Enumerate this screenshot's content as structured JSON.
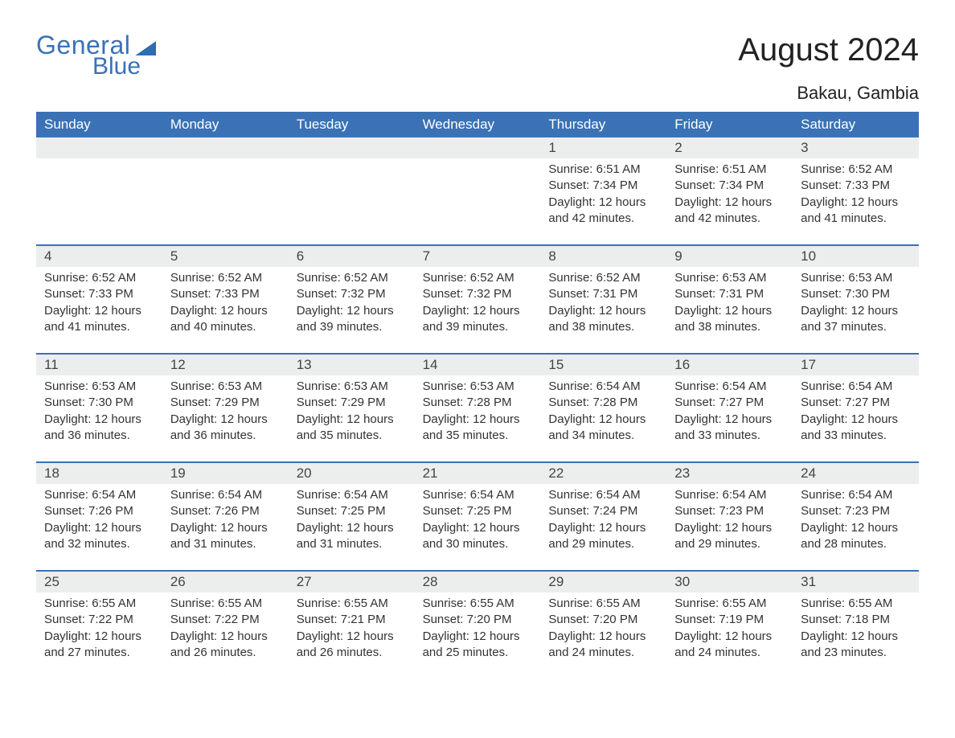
{
  "logo": {
    "word1": "General",
    "word2": "Blue",
    "brand_color": "#3a72b5"
  },
  "title": "August 2024",
  "subtitle": "Bakau, Gambia",
  "colors": {
    "header_bg": "#3a72b5",
    "header_text": "#ffffff",
    "daynum_bg": "#eceded",
    "week_divider": "#3a72b5",
    "body_text": "#333333",
    "page_bg": "#ffffff"
  },
  "typography": {
    "title_fontsize": 40,
    "subtitle_fontsize": 22,
    "weekday_fontsize": 17,
    "daynum_fontsize": 17,
    "body_fontsize": 15
  },
  "calendar": {
    "type": "table",
    "columns": [
      "Sunday",
      "Monday",
      "Tuesday",
      "Wednesday",
      "Thursday",
      "Friday",
      "Saturday"
    ],
    "weeks": [
      {
        "days": [
          null,
          null,
          null,
          null,
          {
            "n": "1",
            "sunrise": "6:51 AM",
            "sunset": "7:34 PM",
            "daylight": "12 hours and 42 minutes."
          },
          {
            "n": "2",
            "sunrise": "6:51 AM",
            "sunset": "7:34 PM",
            "daylight": "12 hours and 42 minutes."
          },
          {
            "n": "3",
            "sunrise": "6:52 AM",
            "sunset": "7:33 PM",
            "daylight": "12 hours and 41 minutes."
          }
        ]
      },
      {
        "days": [
          {
            "n": "4",
            "sunrise": "6:52 AM",
            "sunset": "7:33 PM",
            "daylight": "12 hours and 41 minutes."
          },
          {
            "n": "5",
            "sunrise": "6:52 AM",
            "sunset": "7:33 PM",
            "daylight": "12 hours and 40 minutes."
          },
          {
            "n": "6",
            "sunrise": "6:52 AM",
            "sunset": "7:32 PM",
            "daylight": "12 hours and 39 minutes."
          },
          {
            "n": "7",
            "sunrise": "6:52 AM",
            "sunset": "7:32 PM",
            "daylight": "12 hours and 39 minutes."
          },
          {
            "n": "8",
            "sunrise": "6:52 AM",
            "sunset": "7:31 PM",
            "daylight": "12 hours and 38 minutes."
          },
          {
            "n": "9",
            "sunrise": "6:53 AM",
            "sunset": "7:31 PM",
            "daylight": "12 hours and 38 minutes."
          },
          {
            "n": "10",
            "sunrise": "6:53 AM",
            "sunset": "7:30 PM",
            "daylight": "12 hours and 37 minutes."
          }
        ]
      },
      {
        "days": [
          {
            "n": "11",
            "sunrise": "6:53 AM",
            "sunset": "7:30 PM",
            "daylight": "12 hours and 36 minutes."
          },
          {
            "n": "12",
            "sunrise": "6:53 AM",
            "sunset": "7:29 PM",
            "daylight": "12 hours and 36 minutes."
          },
          {
            "n": "13",
            "sunrise": "6:53 AM",
            "sunset": "7:29 PM",
            "daylight": "12 hours and 35 minutes."
          },
          {
            "n": "14",
            "sunrise": "6:53 AM",
            "sunset": "7:28 PM",
            "daylight": "12 hours and 35 minutes."
          },
          {
            "n": "15",
            "sunrise": "6:54 AM",
            "sunset": "7:28 PM",
            "daylight": "12 hours and 34 minutes."
          },
          {
            "n": "16",
            "sunrise": "6:54 AM",
            "sunset": "7:27 PM",
            "daylight": "12 hours and 33 minutes."
          },
          {
            "n": "17",
            "sunrise": "6:54 AM",
            "sunset": "7:27 PM",
            "daylight": "12 hours and 33 minutes."
          }
        ]
      },
      {
        "days": [
          {
            "n": "18",
            "sunrise": "6:54 AM",
            "sunset": "7:26 PM",
            "daylight": "12 hours and 32 minutes."
          },
          {
            "n": "19",
            "sunrise": "6:54 AM",
            "sunset": "7:26 PM",
            "daylight": "12 hours and 31 minutes."
          },
          {
            "n": "20",
            "sunrise": "6:54 AM",
            "sunset": "7:25 PM",
            "daylight": "12 hours and 31 minutes."
          },
          {
            "n": "21",
            "sunrise": "6:54 AM",
            "sunset": "7:25 PM",
            "daylight": "12 hours and 30 minutes."
          },
          {
            "n": "22",
            "sunrise": "6:54 AM",
            "sunset": "7:24 PM",
            "daylight": "12 hours and 29 minutes."
          },
          {
            "n": "23",
            "sunrise": "6:54 AM",
            "sunset": "7:23 PM",
            "daylight": "12 hours and 29 minutes."
          },
          {
            "n": "24",
            "sunrise": "6:54 AM",
            "sunset": "7:23 PM",
            "daylight": "12 hours and 28 minutes."
          }
        ]
      },
      {
        "days": [
          {
            "n": "25",
            "sunrise": "6:55 AM",
            "sunset": "7:22 PM",
            "daylight": "12 hours and 27 minutes."
          },
          {
            "n": "26",
            "sunrise": "6:55 AM",
            "sunset": "7:22 PM",
            "daylight": "12 hours and 26 minutes."
          },
          {
            "n": "27",
            "sunrise": "6:55 AM",
            "sunset": "7:21 PM",
            "daylight": "12 hours and 26 minutes."
          },
          {
            "n": "28",
            "sunrise": "6:55 AM",
            "sunset": "7:20 PM",
            "daylight": "12 hours and 25 minutes."
          },
          {
            "n": "29",
            "sunrise": "6:55 AM",
            "sunset": "7:20 PM",
            "daylight": "12 hours and 24 minutes."
          },
          {
            "n": "30",
            "sunrise": "6:55 AM",
            "sunset": "7:19 PM",
            "daylight": "12 hours and 24 minutes."
          },
          {
            "n": "31",
            "sunrise": "6:55 AM",
            "sunset": "7:18 PM",
            "daylight": "12 hours and 23 minutes."
          }
        ]
      }
    ],
    "labels": {
      "sunrise": "Sunrise:",
      "sunset": "Sunset:",
      "daylight": "Daylight:"
    }
  }
}
